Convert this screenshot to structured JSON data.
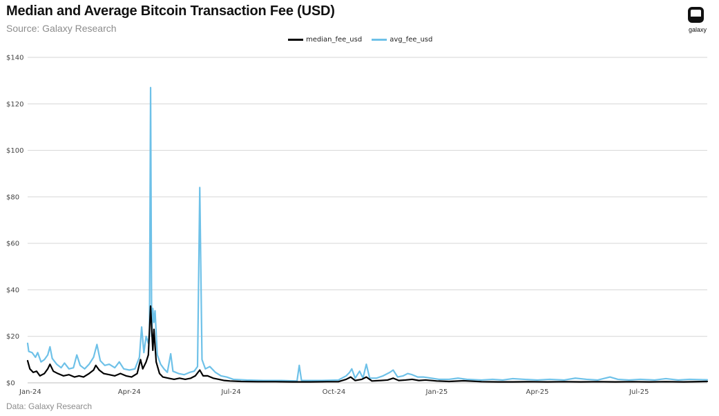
{
  "header": {
    "title": "Median and Average Bitcoin Transaction Fee (USD)",
    "subtitle": "Source: Galaxy Research"
  },
  "logo": {
    "text": "galaxy",
    "icon": "galaxy-logo-icon"
  },
  "footer": {
    "text": "Data: Galaxy Research"
  },
  "colors": {
    "median": "#000000",
    "avg": "#6ec1e8",
    "grid": "#d6d6d6",
    "axis": "#bdbdbd"
  },
  "chart_data": {
    "type": "line",
    "title": "Median and Average Bitcoin Transaction Fee (USD)",
    "xlabel": "",
    "ylabel": "",
    "ylim": [
      0,
      140
    ],
    "xlim": [
      "2024-01-01",
      "2025-08-31"
    ],
    "grid": true,
    "legend_position": "top-center",
    "y_ticks": [
      0,
      20,
      40,
      60,
      80,
      100,
      120,
      140
    ],
    "y_tick_labels": [
      "$0",
      "$20",
      "$40",
      "$60",
      "$80",
      "$100",
      "$120",
      "$140"
    ],
    "x_ticks": [
      "2024-01-01",
      "2024-04-01",
      "2024-07-01",
      "2024-10-01",
      "2025-01-01",
      "2025-04-01",
      "2025-07-01"
    ],
    "x_tick_labels": [
      "Jan-24",
      "Apr-24",
      "Jul-24",
      "Oct-24",
      "Jan-25",
      "Apr-25",
      "Jul-25"
    ],
    "series": [
      {
        "name": "median_fee_usd",
        "color": "#000000",
        "points": [
          [
            "2024-01-01",
            9.5
          ],
          [
            "2024-01-03",
            6.0
          ],
          [
            "2024-01-06",
            4.5
          ],
          [
            "2024-01-09",
            5.0
          ],
          [
            "2024-01-12",
            3.0
          ],
          [
            "2024-01-16",
            4.0
          ],
          [
            "2024-01-19",
            6.0
          ],
          [
            "2024-01-21",
            8.0
          ],
          [
            "2024-01-24",
            5.0
          ],
          [
            "2024-01-28",
            4.0
          ],
          [
            "2024-02-02",
            3.0
          ],
          [
            "2024-02-07",
            3.5
          ],
          [
            "2024-02-12",
            2.5
          ],
          [
            "2024-02-16",
            3.0
          ],
          [
            "2024-02-20",
            2.5
          ],
          [
            "2024-02-25",
            4.0
          ],
          [
            "2024-02-29",
            5.5
          ],
          [
            "2024-03-02",
            7.5
          ],
          [
            "2024-03-05",
            5.5
          ],
          [
            "2024-03-09",
            4.0
          ],
          [
            "2024-03-14",
            3.5
          ],
          [
            "2024-03-19",
            3.0
          ],
          [
            "2024-03-24",
            4.0
          ],
          [
            "2024-03-29",
            3.0
          ],
          [
            "2024-04-03",
            2.5
          ],
          [
            "2024-04-08",
            4.0
          ],
          [
            "2024-04-11",
            10.0
          ],
          [
            "2024-04-13",
            6.0
          ],
          [
            "2024-04-16",
            9.0
          ],
          [
            "2024-04-18",
            12.0
          ],
          [
            "2024-04-20",
            33.0
          ],
          [
            "2024-04-22",
            14.0
          ],
          [
            "2024-04-23",
            23.0
          ],
          [
            "2024-04-25",
            9.0
          ],
          [
            "2024-04-28",
            4.0
          ],
          [
            "2024-05-01",
            2.5
          ],
          [
            "2024-05-06",
            2.0
          ],
          [
            "2024-05-11",
            1.5
          ],
          [
            "2024-05-16",
            2.0
          ],
          [
            "2024-05-21",
            1.5
          ],
          [
            "2024-05-26",
            2.0
          ],
          [
            "2024-05-30",
            3.0
          ],
          [
            "2024-06-03",
            5.5
          ],
          [
            "2024-06-06",
            3.0
          ],
          [
            "2024-06-10",
            3.0
          ],
          [
            "2024-06-15",
            2.0
          ],
          [
            "2024-06-20",
            1.5
          ],
          [
            "2024-06-25",
            1.0
          ],
          [
            "2024-06-30",
            0.8
          ],
          [
            "2024-07-10",
            0.6
          ],
          [
            "2024-07-25",
            0.5
          ],
          [
            "2024-08-10",
            0.5
          ],
          [
            "2024-08-25",
            0.4
          ],
          [
            "2024-09-10",
            0.4
          ],
          [
            "2024-09-25",
            0.5
          ],
          [
            "2024-10-05",
            0.5
          ],
          [
            "2024-10-12",
            1.5
          ],
          [
            "2024-10-16",
            2.5
          ],
          [
            "2024-10-20",
            1.0
          ],
          [
            "2024-10-26",
            1.5
          ],
          [
            "2024-10-30",
            2.5
          ],
          [
            "2024-11-04",
            0.8
          ],
          [
            "2024-11-12",
            1.0
          ],
          [
            "2024-11-18",
            1.2
          ],
          [
            "2024-11-23",
            2.0
          ],
          [
            "2024-11-28",
            1.0
          ],
          [
            "2024-12-04",
            1.2
          ],
          [
            "2024-12-10",
            1.5
          ],
          [
            "2024-12-16",
            1.0
          ],
          [
            "2024-12-22",
            1.2
          ],
          [
            "2025-01-01",
            0.8
          ],
          [
            "2025-01-12",
            0.6
          ],
          [
            "2025-01-25",
            0.9
          ],
          [
            "2025-02-10",
            0.5
          ],
          [
            "2025-02-25",
            0.4
          ],
          [
            "2025-03-10",
            0.4
          ],
          [
            "2025-03-25",
            0.5
          ],
          [
            "2025-04-10",
            0.4
          ],
          [
            "2025-04-25",
            0.5
          ],
          [
            "2025-05-10",
            0.4
          ],
          [
            "2025-05-25",
            0.5
          ],
          [
            "2025-06-10",
            0.4
          ],
          [
            "2025-06-25",
            0.5
          ],
          [
            "2025-07-10",
            0.4
          ],
          [
            "2025-07-25",
            0.5
          ],
          [
            "2025-08-10",
            0.4
          ],
          [
            "2025-08-31",
            0.6
          ]
        ]
      },
      {
        "name": "avg_fee_usd",
        "color": "#6ec1e8",
        "points": [
          [
            "2024-01-01",
            17.0
          ],
          [
            "2024-01-02",
            13.5
          ],
          [
            "2024-01-05",
            13.0
          ],
          [
            "2024-01-08",
            11.0
          ],
          [
            "2024-01-10",
            13.0
          ],
          [
            "2024-01-13",
            9.0
          ],
          [
            "2024-01-16",
            10.0
          ],
          [
            "2024-01-19",
            12.0
          ],
          [
            "2024-01-21",
            15.5
          ],
          [
            "2024-01-23",
            10.5
          ],
          [
            "2024-01-27",
            8.0
          ],
          [
            "2024-01-31",
            6.5
          ],
          [
            "2024-02-03",
            8.5
          ],
          [
            "2024-02-07",
            6.0
          ],
          [
            "2024-02-11",
            6.5
          ],
          [
            "2024-02-14",
            12.0
          ],
          [
            "2024-02-17",
            7.5
          ],
          [
            "2024-02-21",
            6.0
          ],
          [
            "2024-02-25",
            8.0
          ],
          [
            "2024-02-29",
            11.0
          ],
          [
            "2024-03-03",
            16.5
          ],
          [
            "2024-03-06",
            9.5
          ],
          [
            "2024-03-10",
            7.5
          ],
          [
            "2024-03-14",
            8.0
          ],
          [
            "2024-03-19",
            6.5
          ],
          [
            "2024-03-23",
            9.0
          ],
          [
            "2024-03-27",
            6.0
          ],
          [
            "2024-04-01",
            5.5
          ],
          [
            "2024-04-06",
            6.0
          ],
          [
            "2024-04-10",
            11.0
          ],
          [
            "2024-04-12",
            24.0
          ],
          [
            "2024-04-14",
            13.0
          ],
          [
            "2024-04-16",
            20.0
          ],
          [
            "2024-04-18",
            17.0
          ],
          [
            "2024-04-19",
            22.0
          ],
          [
            "2024-04-20",
            127.0
          ],
          [
            "2024-04-21",
            20.0
          ],
          [
            "2024-04-22",
            32.0
          ],
          [
            "2024-04-23",
            26.0
          ],
          [
            "2024-04-24",
            31.0
          ],
          [
            "2024-04-26",
            12.0
          ],
          [
            "2024-04-29",
            8.0
          ],
          [
            "2024-05-02",
            6.0
          ],
          [
            "2024-05-05",
            4.5
          ],
          [
            "2024-05-08",
            12.5
          ],
          [
            "2024-05-10",
            5.0
          ],
          [
            "2024-05-15",
            4.0
          ],
          [
            "2024-05-20",
            3.5
          ],
          [
            "2024-05-25",
            4.5
          ],
          [
            "2024-05-29",
            5.0
          ],
          [
            "2024-06-01",
            7.0
          ],
          [
            "2024-06-03",
            84.0
          ],
          [
            "2024-06-05",
            10.0
          ],
          [
            "2024-06-08",
            6.0
          ],
          [
            "2024-06-12",
            7.0
          ],
          [
            "2024-06-17",
            4.5
          ],
          [
            "2024-06-22",
            3.0
          ],
          [
            "2024-06-27",
            2.5
          ],
          [
            "2024-07-03",
            1.5
          ],
          [
            "2024-07-15",
            1.2
          ],
          [
            "2024-07-30",
            1.0
          ],
          [
            "2024-08-15",
            1.0
          ],
          [
            "2024-08-29",
            0.8
          ],
          [
            "2024-08-31",
            7.5
          ],
          [
            "2024-09-02",
            1.0
          ],
          [
            "2024-09-20",
            1.0
          ],
          [
            "2024-10-05",
            1.2
          ],
          [
            "2024-10-12",
            3.0
          ],
          [
            "2024-10-15",
            4.5
          ],
          [
            "2024-10-17",
            6.0
          ],
          [
            "2024-10-20",
            2.0
          ],
          [
            "2024-10-24",
            5.0
          ],
          [
            "2024-10-27",
            2.0
          ],
          [
            "2024-10-30",
            8.0
          ],
          [
            "2024-11-02",
            2.0
          ],
          [
            "2024-11-08",
            2.0
          ],
          [
            "2024-11-14",
            3.0
          ],
          [
            "2024-11-20",
            4.5
          ],
          [
            "2024-11-23",
            5.5
          ],
          [
            "2024-11-27",
            2.5
          ],
          [
            "2024-12-02",
            3.0
          ],
          [
            "2024-12-06",
            4.0
          ],
          [
            "2024-12-10",
            3.5
          ],
          [
            "2024-12-15",
            2.5
          ],
          [
            "2024-12-20",
            2.5
          ],
          [
            "2024-12-27",
            2.0
          ],
          [
            "2025-01-03",
            1.5
          ],
          [
            "2025-01-12",
            1.5
          ],
          [
            "2025-01-20",
            2.0
          ],
          [
            "2025-01-28",
            1.5
          ],
          [
            "2025-02-10",
            1.2
          ],
          [
            "2025-02-20",
            1.5
          ],
          [
            "2025-03-01",
            1.2
          ],
          [
            "2025-03-10",
            1.8
          ],
          [
            "2025-03-20",
            1.5
          ],
          [
            "2025-04-01",
            1.2
          ],
          [
            "2025-04-12",
            1.5
          ],
          [
            "2025-04-25",
            1.2
          ],
          [
            "2025-05-05",
            2.0
          ],
          [
            "2025-05-15",
            1.5
          ],
          [
            "2025-05-25",
            1.2
          ],
          [
            "2025-06-05",
            2.5
          ],
          [
            "2025-06-12",
            1.5
          ],
          [
            "2025-06-22",
            1.2
          ],
          [
            "2025-07-02",
            1.5
          ],
          [
            "2025-07-15",
            1.2
          ],
          [
            "2025-07-25",
            1.8
          ],
          [
            "2025-08-05",
            1.2
          ],
          [
            "2025-08-15",
            1.5
          ],
          [
            "2025-08-31",
            1.3
          ]
        ]
      }
    ]
  }
}
